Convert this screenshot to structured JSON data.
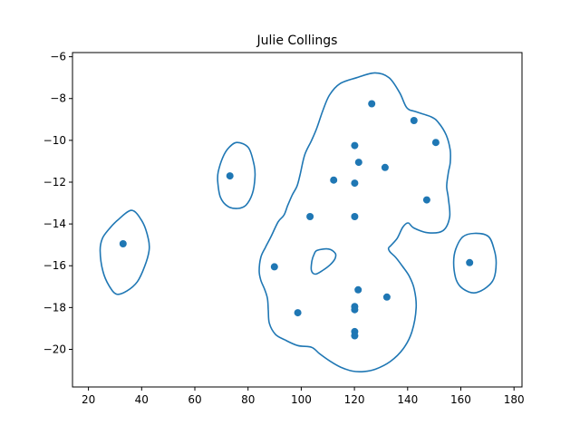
{
  "chart_data": {
    "type": "scatter",
    "title": "Julie Collings",
    "xlabel": "",
    "ylabel": "",
    "xlim": [
      14,
      183
    ],
    "ylim": [
      -21.8,
      -5.8
    ],
    "xticks": [
      20,
      40,
      60,
      80,
      100,
      120,
      140,
      160,
      180
    ],
    "yticks": [
      -20,
      -18,
      -16,
      -14,
      -12,
      -10,
      -8,
      -6
    ],
    "grid": false,
    "color": "#1f77b4",
    "points": [
      {
        "x": 33,
        "y": -14.95
      },
      {
        "x": 73.2,
        "y": -11.7
      },
      {
        "x": 89.9,
        "y": -16.05
      },
      {
        "x": 98.7,
        "y": -18.25
      },
      {
        "x": 103.3,
        "y": -13.65
      },
      {
        "x": 112.2,
        "y": -11.9
      },
      {
        "x": 120.1,
        "y": -10.25
      },
      {
        "x": 120.1,
        "y": -12.05
      },
      {
        "x": 120.1,
        "y": -13.65
      },
      {
        "x": 120.1,
        "y": -17.95
      },
      {
        "x": 120.1,
        "y": -18.1
      },
      {
        "x": 120.1,
        "y": -19.15
      },
      {
        "x": 120.1,
        "y": -19.35
      },
      {
        "x": 121.4,
        "y": -17.15
      },
      {
        "x": 121.6,
        "y": -11.05
      },
      {
        "x": 126.5,
        "y": -8.25
      },
      {
        "x": 131.5,
        "y": -11.3
      },
      {
        "x": 132.2,
        "y": -17.5
      },
      {
        "x": 142.4,
        "y": -9.05
      },
      {
        "x": 147.2,
        "y": -12.85
      },
      {
        "x": 150.6,
        "y": -10.1
      },
      {
        "x": 163.3,
        "y": -15.85
      }
    ],
    "contours": [
      [
        [
          30.8,
          -13.84
        ],
        [
          36.2,
          -13.35
        ],
        [
          40.2,
          -13.88
        ],
        [
          42.5,
          -14.7
        ],
        [
          42.8,
          -15.28
        ],
        [
          41.1,
          -16.04
        ],
        [
          38.4,
          -16.76
        ],
        [
          34.5,
          -17.2
        ],
        [
          30.6,
          -17.36
        ],
        [
          27.7,
          -16.95
        ],
        [
          25.4,
          -16.25
        ],
        [
          24.4,
          -15.28
        ],
        [
          25.2,
          -14.7
        ],
        [
          27.7,
          -14.25
        ],
        [
          30.8,
          -13.84
        ]
      ],
      [
        [
          75.9,
          -10.1
        ],
        [
          80.2,
          -10.36
        ],
        [
          82.3,
          -11.2
        ],
        [
          82.6,
          -11.78
        ],
        [
          81.6,
          -12.56
        ],
        [
          79.2,
          -13.1
        ],
        [
          76.1,
          -13.26
        ],
        [
          72.4,
          -13.16
        ],
        [
          69.6,
          -12.72
        ],
        [
          68.6,
          -11.95
        ],
        [
          68.8,
          -11.5
        ],
        [
          70.5,
          -10.82
        ],
        [
          72.7,
          -10.36
        ],
        [
          75.9,
          -10.1
        ]
      ],
      [
        [
          127.7,
          -6.77
        ],
        [
          133,
          -7
        ],
        [
          137,
          -7.72
        ],
        [
          139.7,
          -8.44
        ],
        [
          143.1,
          -8.63
        ],
        [
          148.9,
          -8.88
        ],
        [
          151.6,
          -9.15
        ],
        [
          154.5,
          -9.75
        ],
        [
          156,
          -10.46
        ],
        [
          156,
          -11.08
        ],
        [
          155.3,
          -11.55
        ],
        [
          154.7,
          -12.2
        ],
        [
          155.3,
          -12.76
        ],
        [
          155.8,
          -13.66
        ],
        [
          153.4,
          -14.31
        ],
        [
          147.6,
          -14.42
        ],
        [
          142.3,
          -14.19
        ],
        [
          140.2,
          -13.95
        ],
        [
          138.2,
          -14.15
        ],
        [
          136.1,
          -14.68
        ],
        [
          133.8,
          -15.02
        ],
        [
          132.8,
          -15.16
        ],
        [
          133.4,
          -15.34
        ],
        [
          135.5,
          -15.6
        ],
        [
          138.2,
          -16.05
        ],
        [
          140.6,
          -16.5
        ],
        [
          142.5,
          -17.12
        ],
        [
          143.2,
          -18.01
        ],
        [
          141.6,
          -19.16
        ],
        [
          138.3,
          -19.98
        ],
        [
          133.5,
          -20.58
        ],
        [
          127.9,
          -20.95
        ],
        [
          123.7,
          -21.06
        ],
        [
          119.3,
          -21.04
        ],
        [
          114.8,
          -20.85
        ],
        [
          110.8,
          -20.56
        ],
        [
          106.8,
          -20.2
        ],
        [
          103.9,
          -19.9
        ],
        [
          98.7,
          -19.82
        ],
        [
          93.9,
          -19.55
        ],
        [
          90.3,
          -19.28
        ],
        [
          88,
          -18.75
        ],
        [
          87.6,
          -18.1
        ],
        [
          87.3,
          -17.57
        ],
        [
          86.3,
          -17.15
        ],
        [
          84.8,
          -16.69
        ],
        [
          84.2,
          -16.25
        ],
        [
          84.8,
          -15.6
        ],
        [
          86.5,
          -15.13
        ],
        [
          88.6,
          -14.62
        ],
        [
          91.3,
          -13.9
        ],
        [
          93.5,
          -13.58
        ],
        [
          94.9,
          -13.12
        ],
        [
          96.6,
          -12.62
        ],
        [
          98.4,
          -12.19
        ],
        [
          99.6,
          -11.63
        ],
        [
          101.3,
          -10.7
        ],
        [
          103.9,
          -10
        ],
        [
          105.9,
          -9.4
        ],
        [
          108.1,
          -8.58
        ],
        [
          110.6,
          -7.84
        ],
        [
          114.5,
          -7.29
        ],
        [
          120.9,
          -7
        ],
        [
          127.7,
          -6.77
        ]
      ],
      [
        [
          106,
          -15.26
        ],
        [
          110.3,
          -15.2
        ],
        [
          112.8,
          -15.41
        ],
        [
          112.7,
          -15.66
        ],
        [
          110.9,
          -15.95
        ],
        [
          108,
          -16.23
        ],
        [
          105.3,
          -16.4
        ],
        [
          103.8,
          -16.22
        ],
        [
          104,
          -15.78
        ],
        [
          104.8,
          -15.46
        ],
        [
          106,
          -15.26
        ]
      ],
      [
        [
          165.2,
          -14.45
        ],
        [
          170.4,
          -14.6
        ],
        [
          172.6,
          -15.26
        ],
        [
          173.3,
          -15.88
        ],
        [
          172.4,
          -16.62
        ],
        [
          169.7,
          -17.03
        ],
        [
          165.9,
          -17.28
        ],
        [
          163,
          -17.25
        ],
        [
          159.7,
          -16.98
        ],
        [
          158,
          -16.56
        ],
        [
          157.3,
          -15.82
        ],
        [
          158.1,
          -15.2
        ],
        [
          160.7,
          -14.62
        ],
        [
          165.2,
          -14.45
        ]
      ]
    ]
  }
}
